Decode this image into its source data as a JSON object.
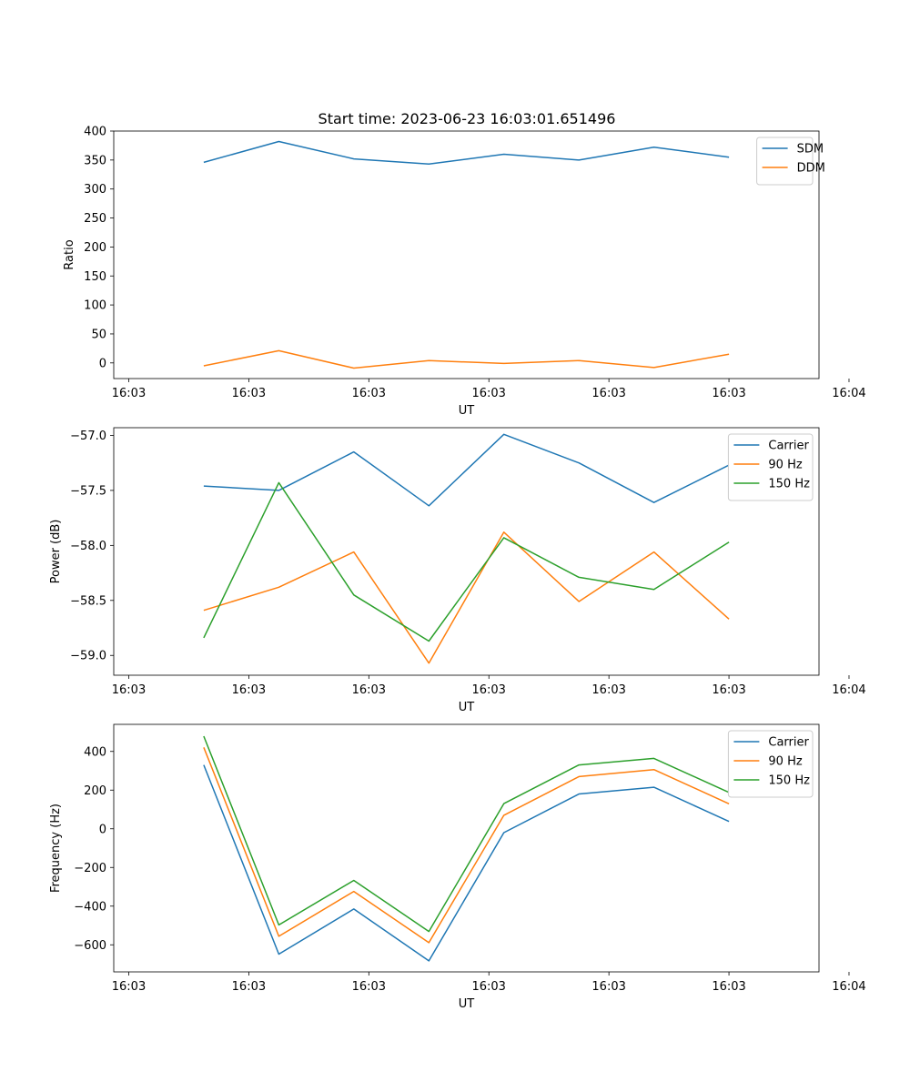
{
  "figure_title": "Start time: 2023-06-23 16:03:01.651496",
  "colors": {
    "c0": "#1f77b4",
    "c1": "#ff7f0e",
    "c2": "#2ca02c",
    "axes": "#000000",
    "legend_border": "#cccccc"
  },
  "chart_data": [
    {
      "type": "line",
      "title": "Start time: 2023-06-23 16:03:01.651496",
      "xlabel": "UT",
      "ylabel": "Ratio",
      "x": [
        0.5,
        1.0,
        1.5,
        2.0,
        2.5,
        3.0,
        3.5,
        4.0
      ],
      "xlim": [
        -0.1,
        4.6
      ],
      "xticks": [
        0,
        0.8,
        1.6,
        2.4,
        3.2,
        4.0,
        4.8
      ],
      "xtick_labels": [
        "16:03",
        "16:03",
        "16:03",
        "16:03",
        "16:03",
        "16:03",
        "16:04"
      ],
      "ylim": [
        -27,
        400
      ],
      "yticks": [
        0,
        50,
        100,
        150,
        200,
        250,
        300,
        350,
        400
      ],
      "ytick_labels": [
        "0",
        "50",
        "100",
        "150",
        "200",
        "250",
        "300",
        "350",
        "400"
      ],
      "legend": "top-right",
      "series": [
        {
          "name": "SDM",
          "color": "#1f77b4",
          "values": [
            346,
            382,
            352,
            343,
            360,
            350,
            372,
            355
          ]
        },
        {
          "name": "DDM",
          "color": "#ff7f0e",
          "values": [
            -5,
            21,
            -9,
            4,
            -1,
            4,
            -8,
            15
          ]
        }
      ]
    },
    {
      "type": "line",
      "xlabel": "UT",
      "ylabel": "Power (dB)",
      "x": [
        0.5,
        1.0,
        1.5,
        2.0,
        2.5,
        3.0,
        3.5,
        4.0
      ],
      "xlim": [
        -0.1,
        4.6
      ],
      "xticks": [
        0,
        0.8,
        1.6,
        2.4,
        3.2,
        4.0,
        4.8
      ],
      "xtick_labels": [
        "16:03",
        "16:03",
        "16:03",
        "16:03",
        "16:03",
        "16:03",
        "16:04"
      ],
      "ylim": [
        -59.18,
        -56.93
      ],
      "yticks": [
        -57.0,
        -57.5,
        -58.0,
        -58.5,
        -59.0
      ],
      "ytick_labels": [
        "−57.0",
        "−57.5",
        "−58.0",
        "−58.5",
        "−59.0"
      ],
      "legend": "top-right",
      "series": [
        {
          "name": "Carrier",
          "color": "#1f77b4",
          "values": [
            -57.46,
            -57.5,
            -57.15,
            -57.64,
            -56.99,
            -57.25,
            -57.61,
            -57.27
          ]
        },
        {
          "name": "90 Hz",
          "color": "#ff7f0e",
          "values": [
            -58.59,
            -58.38,
            -58.06,
            -59.07,
            -57.88,
            -58.51,
            -58.06,
            -58.67
          ]
        },
        {
          "name": "150 Hz",
          "color": "#2ca02c",
          "values": [
            -58.84,
            -57.43,
            -58.45,
            -58.87,
            -57.93,
            -58.29,
            -58.4,
            -57.97
          ]
        }
      ]
    },
    {
      "type": "line",
      "xlabel": "UT",
      "ylabel": "Frequency (Hz)",
      "x": [
        0.5,
        1.0,
        1.5,
        2.0,
        2.5,
        3.0,
        3.5,
        4.0
      ],
      "xlim": [
        -0.1,
        4.6
      ],
      "xticks": [
        0,
        0.8,
        1.6,
        2.4,
        3.2,
        4.0,
        4.8
      ],
      "xtick_labels": [
        "16:03",
        "16:03",
        "16:03",
        "16:03",
        "16:03",
        "16:03",
        "16:04"
      ],
      "ylim": [
        -740,
        540
      ],
      "yticks": [
        400,
        200,
        0,
        -200,
        -400,
        -600
      ],
      "ytick_labels": [
        "400",
        "200",
        "0",
        "−200",
        "−400",
        "−600"
      ],
      "legend": "top-right",
      "series": [
        {
          "name": "Carrier",
          "color": "#1f77b4",
          "values": [
            330,
            -648,
            -415,
            -683,
            -20,
            180,
            215,
            38
          ]
        },
        {
          "name": "90 Hz",
          "color": "#ff7f0e",
          "values": [
            421,
            -556,
            -324,
            -589,
            70,
            270,
            306,
            129
          ]
        },
        {
          "name": "150 Hz",
          "color": "#2ca02c",
          "values": [
            479,
            -497,
            -267,
            -531,
            130,
            330,
            364,
            188
          ]
        }
      ]
    }
  ]
}
